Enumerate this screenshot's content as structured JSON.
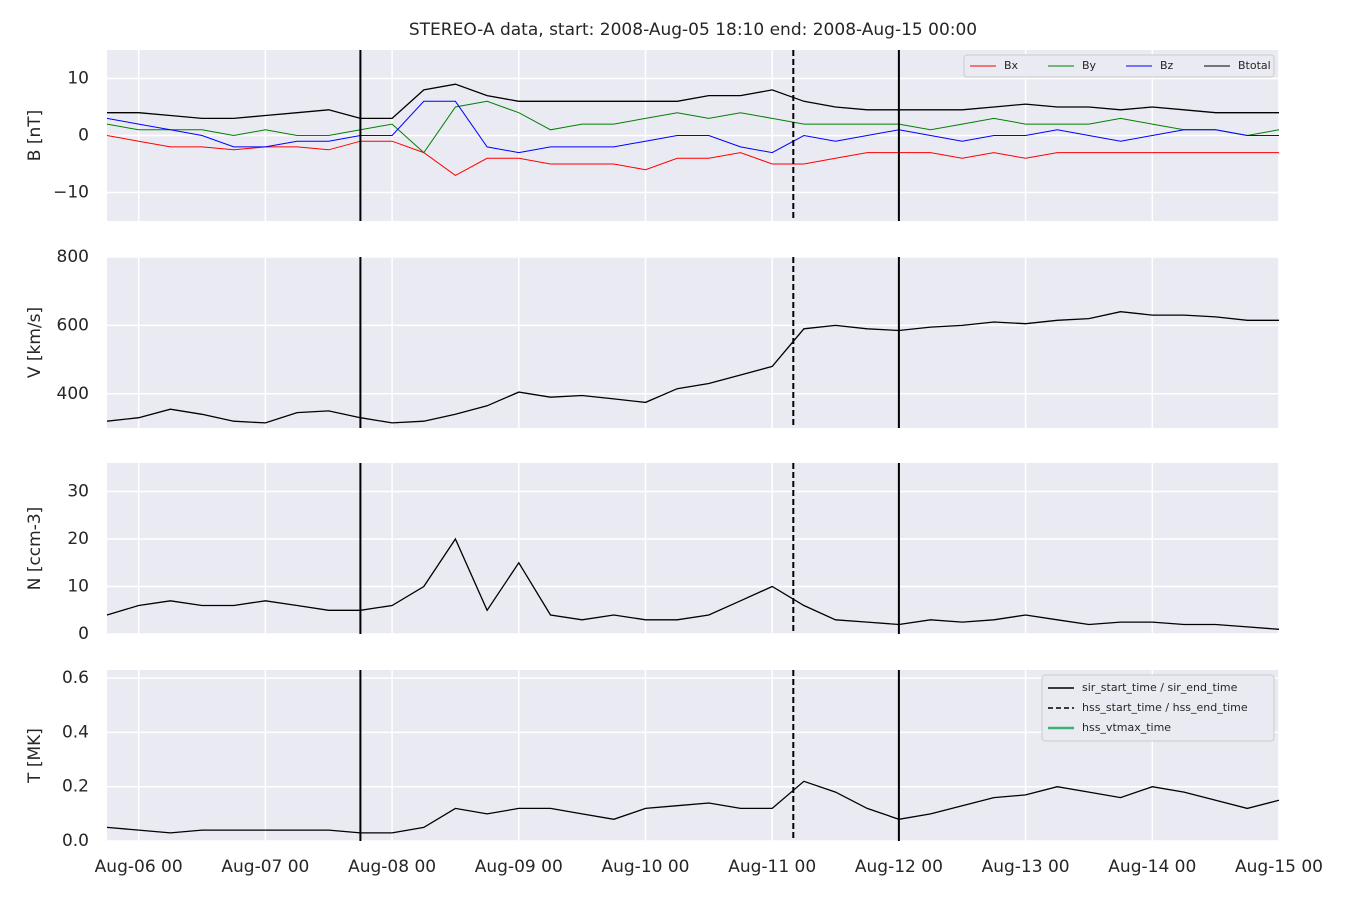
{
  "chart_data": [
    {
      "type": "line",
      "title": "STEREO-A data, start: 2008-Aug-05 18:10  end: 2008-Aug-15 00:00",
      "ylabel": "B [nT]",
      "x": [
        "Aug-05 18",
        "Aug-06 00",
        "Aug-06 06",
        "Aug-06 12",
        "Aug-06 18",
        "Aug-07 00",
        "Aug-07 06",
        "Aug-07 12",
        "Aug-07 18",
        "Aug-08 00",
        "Aug-08 06",
        "Aug-08 12",
        "Aug-08 18",
        "Aug-09 00",
        "Aug-09 06",
        "Aug-09 12",
        "Aug-09 18",
        "Aug-10 00",
        "Aug-10 06",
        "Aug-10 12",
        "Aug-10 18",
        "Aug-11 00",
        "Aug-11 06",
        "Aug-11 12",
        "Aug-11 18",
        "Aug-12 00",
        "Aug-12 06",
        "Aug-12 12",
        "Aug-12 18",
        "Aug-13 00",
        "Aug-13 06",
        "Aug-13 12",
        "Aug-13 18",
        "Aug-14 00",
        "Aug-14 06",
        "Aug-14 12",
        "Aug-14 18",
        "Aug-15 00"
      ],
      "xlim": [
        "Aug-05 18",
        "Aug-15 00"
      ],
      "xticks": [
        "Aug-06 00",
        "Aug-07 00",
        "Aug-08 00",
        "Aug-09 00",
        "Aug-10 00",
        "Aug-11 00",
        "Aug-12 00",
        "Aug-13 00",
        "Aug-14 00",
        "Aug-15 00"
      ],
      "ylim": [
        -15,
        15
      ],
      "yticks": [
        {
          "value": -10,
          "label": "−10"
        },
        0,
        10
      ],
      "grid": true,
      "legend": "upper right",
      "series": [
        {
          "name": "Bx",
          "color": "#ff0000",
          "values": [
            0,
            -1,
            -2,
            -2,
            -2.5,
            -2,
            -2,
            -2.5,
            -1,
            -1,
            -3,
            -7,
            -4,
            -4,
            -5,
            -5,
            -5,
            -6,
            -4,
            -4,
            -3,
            -5,
            -5,
            -4,
            -3,
            -3,
            -3,
            -4,
            -3,
            -4,
            -3,
            -3,
            -3,
            -3,
            -3,
            -3,
            -3,
            -3
          ]
        },
        {
          "name": "By",
          "color": "#008000",
          "values": [
            2,
            1,
            1,
            1,
            0,
            1,
            0,
            0,
            1,
            2,
            -3,
            5,
            6,
            4,
            1,
            2,
            2,
            3,
            4,
            3,
            4,
            3,
            2,
            2,
            2,
            2,
            1,
            2,
            3,
            2,
            2,
            2,
            3,
            2,
            1,
            1,
            0,
            1
          ]
        },
        {
          "name": "Bz",
          "color": "#0000ff",
          "values": [
            3,
            2,
            1,
            0,
            -2,
            -2,
            -1,
            -1,
            0,
            0,
            6,
            6,
            -2,
            -3,
            -2,
            -2,
            -2,
            -1,
            0,
            0,
            -2,
            -3,
            0,
            -1,
            0,
            1,
            0,
            -1,
            0,
            0,
            1,
            0,
            -1,
            0,
            1,
            1,
            0,
            0
          ]
        },
        {
          "name": "Btotal",
          "color": "#000000",
          "values": [
            4,
            4,
            3.5,
            3,
            3,
            3.5,
            4,
            4.5,
            3,
            3,
            8,
            9,
            7,
            6,
            6,
            6,
            6,
            6,
            6,
            7,
            7,
            8,
            6,
            5,
            4.5,
            4.5,
            4.5,
            4.5,
            5,
            5.5,
            5,
            5,
            4.5,
            5,
            4.5,
            4,
            4,
            4
          ]
        }
      ]
    },
    {
      "type": "line",
      "ylabel": "V [km/s]",
      "x": [
        "Aug-05 18",
        "Aug-06 00",
        "Aug-06 06",
        "Aug-06 12",
        "Aug-06 18",
        "Aug-07 00",
        "Aug-07 06",
        "Aug-07 12",
        "Aug-07 18",
        "Aug-08 00",
        "Aug-08 06",
        "Aug-08 12",
        "Aug-08 18",
        "Aug-09 00",
        "Aug-09 06",
        "Aug-09 12",
        "Aug-09 18",
        "Aug-10 00",
        "Aug-10 06",
        "Aug-10 12",
        "Aug-10 18",
        "Aug-11 00",
        "Aug-11 06",
        "Aug-11 12",
        "Aug-11 18",
        "Aug-12 00",
        "Aug-12 06",
        "Aug-12 12",
        "Aug-12 18",
        "Aug-13 00",
        "Aug-13 06",
        "Aug-13 12",
        "Aug-13 18",
        "Aug-14 00",
        "Aug-14 06",
        "Aug-14 12",
        "Aug-14 18",
        "Aug-15 00"
      ],
      "xlim": [
        "Aug-05 18",
        "Aug-15 00"
      ],
      "xticks": [
        "Aug-06 00",
        "Aug-07 00",
        "Aug-08 00",
        "Aug-09 00",
        "Aug-10 00",
        "Aug-11 00",
        "Aug-12 00",
        "Aug-13 00",
        "Aug-14 00",
        "Aug-15 00"
      ],
      "ylim": [
        300,
        800
      ],
      "yticks": [
        400,
        600,
        800
      ],
      "grid": true,
      "series": [
        {
          "color": "#000000",
          "values": [
            320,
            330,
            355,
            340,
            320,
            315,
            345,
            350,
            330,
            315,
            320,
            340,
            365,
            405,
            390,
            395,
            385,
            375,
            415,
            430,
            455,
            480,
            590,
            600,
            590,
            585,
            595,
            600,
            610,
            605,
            615,
            620,
            640,
            630,
            630,
            625,
            615,
            615
          ]
        }
      ]
    },
    {
      "type": "line",
      "ylabel": "N [ccm-3]",
      "x": [
        "Aug-05 18",
        "Aug-06 00",
        "Aug-06 06",
        "Aug-06 12",
        "Aug-06 18",
        "Aug-07 00",
        "Aug-07 06",
        "Aug-07 12",
        "Aug-07 18",
        "Aug-08 00",
        "Aug-08 06",
        "Aug-08 12",
        "Aug-08 18",
        "Aug-09 00",
        "Aug-09 06",
        "Aug-09 12",
        "Aug-09 18",
        "Aug-10 00",
        "Aug-10 06",
        "Aug-10 12",
        "Aug-10 18",
        "Aug-11 00",
        "Aug-11 06",
        "Aug-11 12",
        "Aug-11 18",
        "Aug-12 00",
        "Aug-12 06",
        "Aug-12 12",
        "Aug-12 18",
        "Aug-13 00",
        "Aug-13 06",
        "Aug-13 12",
        "Aug-13 18",
        "Aug-14 00",
        "Aug-14 06",
        "Aug-14 12",
        "Aug-14 18",
        "Aug-15 00"
      ],
      "xlim": [
        "Aug-05 18",
        "Aug-15 00"
      ],
      "xticks": [
        "Aug-06 00",
        "Aug-07 00",
        "Aug-08 00",
        "Aug-09 00",
        "Aug-10 00",
        "Aug-11 00",
        "Aug-12 00",
        "Aug-13 00",
        "Aug-14 00",
        "Aug-15 00"
      ],
      "ylim": [
        0,
        36
      ],
      "yticks": [
        0,
        10,
        20,
        30
      ],
      "grid": true,
      "series": [
        {
          "color": "#000000",
          "values": [
            4,
            6,
            7,
            6,
            6,
            7,
            6,
            5,
            5,
            6,
            10,
            20,
            5,
            15,
            4,
            3,
            4,
            3,
            3,
            4,
            7,
            10,
            6,
            3,
            2.5,
            2,
            3,
            2.5,
            3,
            4,
            3,
            2,
            2.5,
            2.5,
            2,
            2,
            1.5,
            1
          ]
        }
      ]
    },
    {
      "type": "line",
      "ylabel": "T [MK]",
      "x": [
        "Aug-05 18",
        "Aug-06 00",
        "Aug-06 06",
        "Aug-06 12",
        "Aug-06 18",
        "Aug-07 00",
        "Aug-07 06",
        "Aug-07 12",
        "Aug-07 18",
        "Aug-08 00",
        "Aug-08 06",
        "Aug-08 12",
        "Aug-08 18",
        "Aug-09 00",
        "Aug-09 06",
        "Aug-09 12",
        "Aug-09 18",
        "Aug-10 00",
        "Aug-10 06",
        "Aug-10 12",
        "Aug-10 18",
        "Aug-11 00",
        "Aug-11 06",
        "Aug-11 12",
        "Aug-11 18",
        "Aug-12 00",
        "Aug-12 06",
        "Aug-12 12",
        "Aug-12 18",
        "Aug-13 00",
        "Aug-13 06",
        "Aug-13 12",
        "Aug-13 18",
        "Aug-14 00",
        "Aug-14 06",
        "Aug-14 12",
        "Aug-14 18",
        "Aug-15 00"
      ],
      "xlim": [
        "Aug-05 18",
        "Aug-15 00"
      ],
      "xticks": [
        "Aug-06 00",
        "Aug-07 00",
        "Aug-08 00",
        "Aug-09 00",
        "Aug-10 00",
        "Aug-11 00",
        "Aug-12 00",
        "Aug-13 00",
        "Aug-14 00",
        "Aug-15 00"
      ],
      "ylim": [
        0,
        0.63
      ],
      "yticks": [
        {
          "value": 0,
          "label": "0.0"
        },
        0.2,
        0.4,
        0.6
      ],
      "grid": true,
      "legend": "upper right",
      "series": [
        {
          "color": "#000000",
          "values": [
            0.05,
            0.04,
            0.03,
            0.04,
            0.04,
            0.04,
            0.04,
            0.04,
            0.03,
            0.03,
            0.05,
            0.12,
            0.1,
            0.12,
            0.12,
            0.1,
            0.08,
            0.12,
            0.13,
            0.14,
            0.12,
            0.12,
            0.22,
            0.18,
            0.12,
            0.08,
            0.1,
            0.13,
            0.16,
            0.17,
            0.2,
            0.18,
            0.16,
            0.2,
            0.18,
            0.15,
            0.12,
            0.15
          ]
        }
      ],
      "events": [
        {
          "name": "sir_start_time / sir_end_time",
          "color": "#000000",
          "style": "solid",
          "times": [
            "Aug-07 18",
            "Aug-12 00"
          ]
        },
        {
          "name": "hss_start_time / hss_end_time",
          "color": "#000000",
          "style": "dashed",
          "times": [
            "Aug-11 04"
          ]
        },
        {
          "name": "hss_vtmax_time",
          "color": "#3cb371",
          "style": "solid",
          "times": []
        }
      ]
    }
  ]
}
